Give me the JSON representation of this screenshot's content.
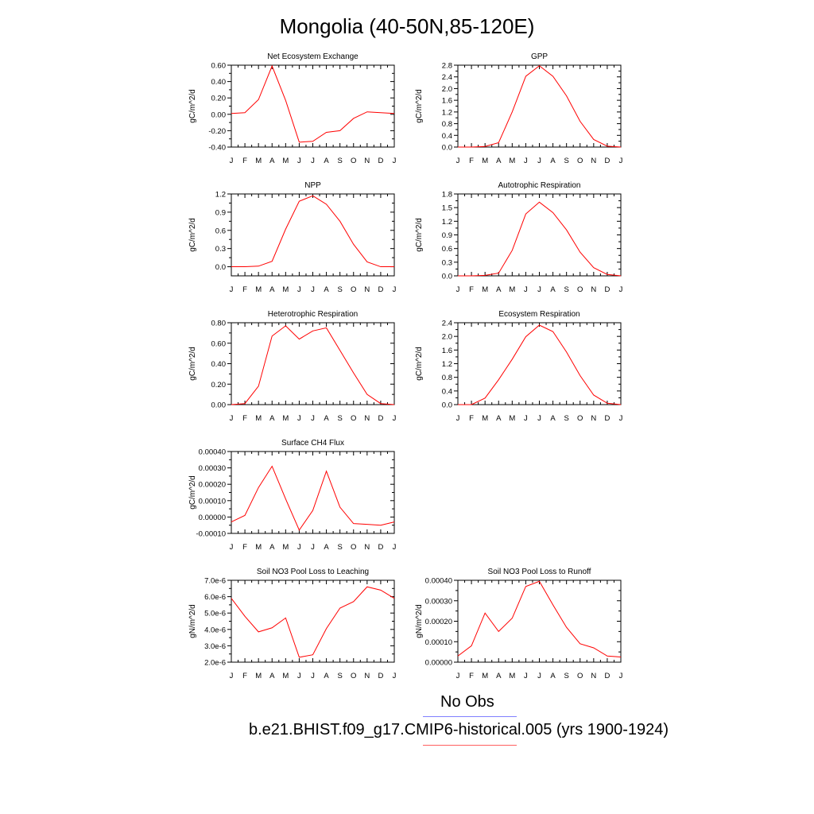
{
  "page": {
    "title": "Mongolia (40-50N,85-120E)"
  },
  "legend": {
    "obs_label": "No Obs",
    "obs_color": "#8080ff",
    "model_label": "b.e21.BHIST.f09_g17.CMIP6-historical.005 (yrs 1900-1924)",
    "model_color": "#ff6060"
  },
  "chart_data": [
    {
      "type": "line",
      "title": "Net Ecosystem Exchange",
      "ylabel": "gC/m^2/d",
      "categories": [
        "J",
        "F",
        "M",
        "A",
        "M",
        "J",
        "J",
        "A",
        "S",
        "O",
        "N",
        "D",
        "J"
      ],
      "ylim": [
        -0.4,
        0.6
      ],
      "yticks": [
        -0.4,
        -0.2,
        0.0,
        0.2,
        0.4,
        0.6
      ],
      "ytick_labels": [
        "-0.40",
        "-0.20",
        "0.00",
        "0.20",
        "0.40",
        "0.60"
      ],
      "series": [
        {
          "values": [
            0.01,
            0.02,
            0.18,
            0.59,
            0.17,
            -0.34,
            -0.33,
            -0.22,
            -0.2,
            -0.05,
            0.03,
            0.02,
            0.01
          ],
          "color": "#ff0000"
        }
      ]
    },
    {
      "type": "line",
      "title": "GPP",
      "ylabel": "gC/m^2/d",
      "categories": [
        "J",
        "F",
        "M",
        "A",
        "M",
        "J",
        "J",
        "A",
        "S",
        "O",
        "N",
        "D",
        "J"
      ],
      "ylim": [
        0.0,
        2.8
      ],
      "yticks": [
        0.0,
        0.4,
        0.8,
        1.2,
        1.6,
        2.0,
        2.4,
        2.8
      ],
      "ytick_labels": [
        "0.0",
        "0.4",
        "0.8",
        "1.2",
        "1.6",
        "2.0",
        "2.4",
        "2.8"
      ],
      "series": [
        {
          "values": [
            0.0,
            0.0,
            0.02,
            0.15,
            1.2,
            2.42,
            2.78,
            2.42,
            1.75,
            0.88,
            0.26,
            0.03,
            0.0
          ],
          "color": "#ff0000"
        }
      ]
    },
    {
      "type": "line",
      "title": "NPP",
      "ylabel": "gC/m^2/d",
      "categories": [
        "J",
        "F",
        "M",
        "A",
        "M",
        "J",
        "J",
        "A",
        "S",
        "O",
        "N",
        "D",
        "J"
      ],
      "ylim": [
        -0.15,
        1.2
      ],
      "yticks": [
        0.0,
        0.3,
        0.6,
        0.9,
        1.2
      ],
      "ytick_labels": [
        "0.0",
        "0.3",
        "0.6",
        "0.9",
        "1.2"
      ],
      "series": [
        {
          "values": [
            0.0,
            0.0,
            0.01,
            0.09,
            0.62,
            1.08,
            1.17,
            1.03,
            0.75,
            0.37,
            0.08,
            0.0,
            0.0
          ],
          "color": "#ff0000"
        }
      ]
    },
    {
      "type": "line",
      "title": "Autotrophic Respiration",
      "ylabel": "gC/m^2/d",
      "categories": [
        "J",
        "F",
        "M",
        "A",
        "M",
        "J",
        "J",
        "A",
        "S",
        "O",
        "N",
        "D",
        "J"
      ],
      "ylim": [
        0.0,
        1.8
      ],
      "yticks": [
        0.0,
        0.3,
        0.6,
        0.9,
        1.2,
        1.5,
        1.8
      ],
      "ytick_labels": [
        "0.0",
        "0.3",
        "0.6",
        "0.9",
        "1.2",
        "1.5",
        "1.8"
      ],
      "series": [
        {
          "values": [
            0.0,
            0.0,
            0.01,
            0.06,
            0.56,
            1.36,
            1.62,
            1.39,
            1.01,
            0.52,
            0.18,
            0.03,
            0.0
          ],
          "color": "#ff0000"
        }
      ]
    },
    {
      "type": "line",
      "title": "Heterotrophic Respiration",
      "ylabel": "gC/m^2/d",
      "categories": [
        "J",
        "F",
        "M",
        "A",
        "M",
        "J",
        "J",
        "A",
        "S",
        "O",
        "N",
        "D",
        "J"
      ],
      "ylim": [
        0.0,
        0.8
      ],
      "yticks": [
        0.0,
        0.2,
        0.4,
        0.6,
        0.8
      ],
      "ytick_labels": [
        "0.00",
        "0.20",
        "0.40",
        "0.60",
        "0.80"
      ],
      "series": [
        {
          "values": [
            0.0,
            0.01,
            0.18,
            0.67,
            0.77,
            0.64,
            0.72,
            0.75,
            0.53,
            0.31,
            0.1,
            0.01,
            0.0
          ],
          "color": "#ff0000"
        }
      ]
    },
    {
      "type": "line",
      "title": "Ecosystem Respiration",
      "ylabel": "gC/m^2/d",
      "categories": [
        "J",
        "F",
        "M",
        "A",
        "M",
        "J",
        "J",
        "A",
        "S",
        "O",
        "N",
        "D",
        "J"
      ],
      "ylim": [
        0.0,
        2.4
      ],
      "yticks": [
        0.0,
        0.4,
        0.8,
        1.2,
        1.6,
        2.0,
        2.4
      ],
      "ytick_labels": [
        "0.0",
        "0.4",
        "0.8",
        "1.2",
        "1.6",
        "2.0",
        "2.4"
      ],
      "series": [
        {
          "values": [
            0.0,
            0.0,
            0.19,
            0.73,
            1.33,
            1.99,
            2.33,
            2.14,
            1.54,
            0.85,
            0.28,
            0.04,
            0.0
          ],
          "color": "#ff0000"
        }
      ]
    },
    {
      "type": "line",
      "title": "Surface CH4 Flux",
      "ylabel": "gC/m^2/d",
      "categories": [
        "J",
        "F",
        "M",
        "A",
        "M",
        "J",
        "J",
        "A",
        "S",
        "O",
        "N",
        "D",
        "J"
      ],
      "ylim": [
        -0.0001,
        0.0004
      ],
      "yticks": [
        -0.0001,
        0.0,
        0.0001,
        0.0002,
        0.0003,
        0.0004
      ],
      "ytick_labels": [
        "-0.00010",
        "0.00000",
        "0.00010",
        "0.00020",
        "0.00030",
        "0.00040"
      ],
      "series": [
        {
          "values": [
            -3e-05,
            1e-05,
            0.00018,
            0.00031,
            0.00011,
            -8e-05,
            4e-05,
            0.00028,
            6e-05,
            -4e-05,
            -4.5e-05,
            -5e-05,
            -3e-05
          ],
          "color": "#ff0000"
        }
      ]
    },
    {
      "type": "line",
      "title": "Soil NO3 Pool Loss to Leaching",
      "ylabel": "gN/m^2/d",
      "categories": [
        "J",
        "F",
        "M",
        "A",
        "M",
        "J",
        "J",
        "A",
        "S",
        "O",
        "N",
        "D",
        "J"
      ],
      "ylim": [
        2e-06,
        7e-06
      ],
      "yticks": [
        2e-06,
        3e-06,
        4e-06,
        5e-06,
        6e-06,
        7e-06
      ],
      "ytick_labels": [
        "2.0e-6",
        "3.0e-6",
        "4.0e-6",
        "5.0e-6",
        "6.0e-6",
        "7.0e-6"
      ],
      "series": [
        {
          "values": [
            5.9e-06,
            4.8e-06,
            3.85e-06,
            4.1e-06,
            4.7e-06,
            2.3e-06,
            2.45e-06,
            4.05e-06,
            5.3e-06,
            5.7e-06,
            6.6e-06,
            6.4e-06,
            5.9e-06
          ],
          "color": "#ff0000"
        }
      ]
    },
    {
      "type": "line",
      "title": "Soil NO3 Pool Loss to Runoff",
      "ylabel": "gN/m^2/d",
      "categories": [
        "J",
        "F",
        "M",
        "A",
        "M",
        "J",
        "J",
        "A",
        "S",
        "O",
        "N",
        "D",
        "J"
      ],
      "ylim": [
        0.0,
        0.0004
      ],
      "yticks": [
        0.0,
        0.0001,
        0.0002,
        0.0003,
        0.0004
      ],
      "ytick_labels": [
        "0.00000",
        "0.00010",
        "0.00020",
        "0.00030",
        "0.00040"
      ],
      "series": [
        {
          "values": [
            3e-05,
            8e-05,
            0.00024,
            0.00015,
            0.000215,
            0.00037,
            0.000395,
            0.00028,
            0.00017,
            9e-05,
            7e-05,
            3e-05,
            2.5e-05
          ],
          "color": "#ff0000"
        }
      ]
    }
  ]
}
